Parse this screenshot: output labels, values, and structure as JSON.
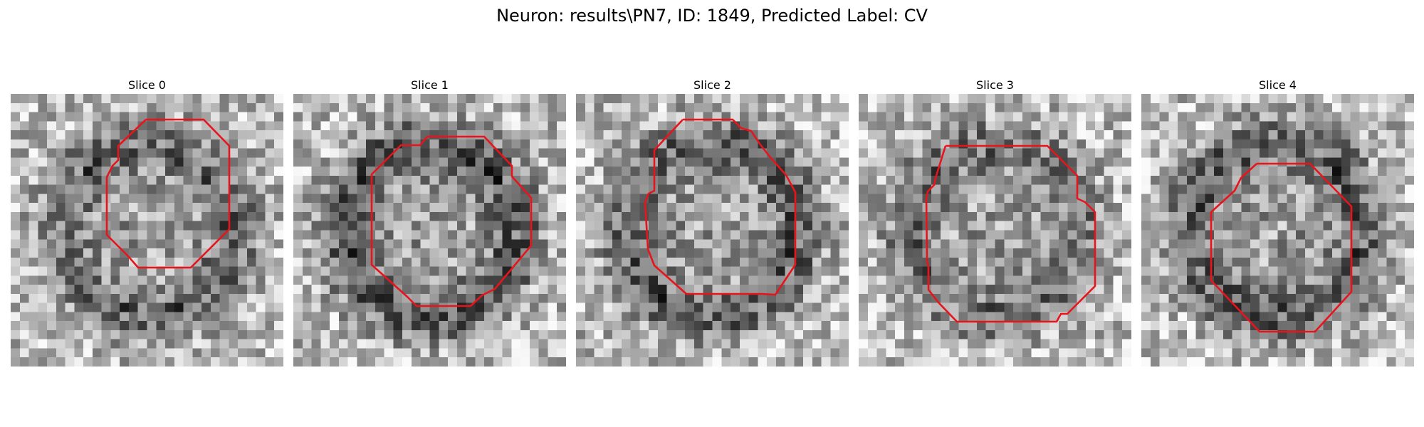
{
  "figure": {
    "title": "Neuron: results\\PN7, ID: 1849, Predicted Label: CV"
  },
  "colors": {
    "contour": "#e8141c",
    "image_colormap": "grayscale"
  },
  "panels": [
    {
      "title": "Slice 0",
      "seed": 11,
      "dark_ring": 0.55
    },
    {
      "title": "Slice 1",
      "seed": 23,
      "dark_ring": 0.65
    },
    {
      "title": "Slice 2",
      "seed": 37,
      "dark_ring": 0.6
    },
    {
      "title": "Slice 3",
      "seed": 51,
      "dark_ring": 0.45
    },
    {
      "title": "Slice 4",
      "seed": 73,
      "dark_ring": 0.6
    }
  ]
}
